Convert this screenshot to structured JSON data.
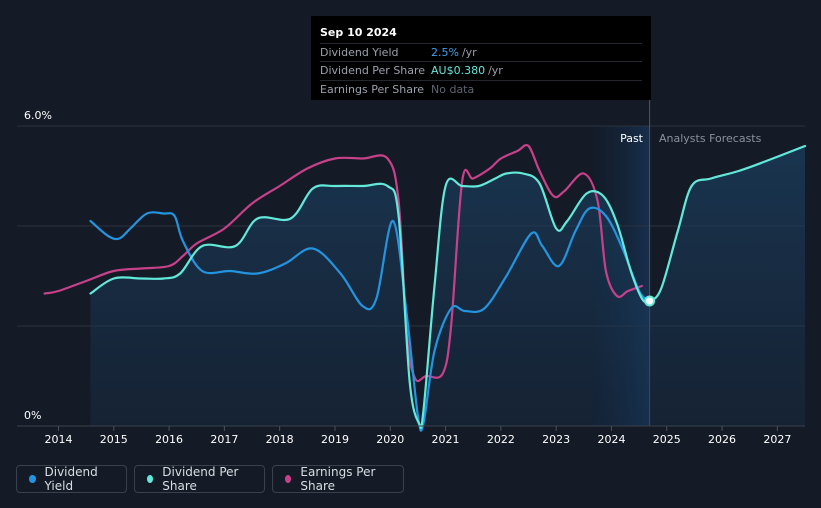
{
  "tooltip": {
    "date": "Sep 10 2024",
    "rows": [
      {
        "label": "Dividend Yield",
        "value": "2.5%",
        "unit": "/yr"
      },
      {
        "label": "Dividend Per Share",
        "value": "AU$0.380",
        "unit": "/yr"
      },
      {
        "label": "Earnings Per Share",
        "value": "No data"
      }
    ]
  },
  "legend": [
    {
      "label": "Dividend Yield",
      "color": "#2394df"
    },
    {
      "label": "Dividend Per Share",
      "color": "#62e9d9"
    },
    {
      "label": "Earnings Per Share",
      "color": "#c7418a"
    }
  ],
  "chart_data": {
    "type": "line",
    "title": "",
    "y_axis_labels": [
      "6.0%",
      "0%"
    ],
    "ylim": [
      0,
      6.0
    ],
    "xlim": [
      2013.25,
      2027.5
    ],
    "x_ticks": [
      "2014",
      "2015",
      "2016",
      "2017",
      "2018",
      "2019",
      "2020",
      "2021",
      "2022",
      "2023",
      "2024",
      "2025",
      "2026",
      "2027"
    ],
    "region_labels": {
      "past": "Past",
      "forecast": "Analysts Forecasts"
    },
    "current_marker": {
      "x": 2024.69,
      "y": 2.5
    },
    "series": [
      {
        "name": "Dividend Yield",
        "color": "#2394df",
        "x": [
          2014.58,
          2014.9,
          2015.1,
          2015.3,
          2015.6,
          2015.9,
          2016.1,
          2016.25,
          2016.6,
          2017.1,
          2017.6,
          2018.1,
          2018.6,
          2019.1,
          2019.5,
          2019.75,
          2020.05,
          2020.3,
          2020.5,
          2020.6,
          2020.8,
          2021.1,
          2021.35,
          2021.7,
          2022.1,
          2022.55,
          2022.75,
          2023.05,
          2023.35,
          2023.6,
          2023.9,
          2024.2,
          2024.5,
          2024.69
        ],
        "y": [
          4.1,
          3.8,
          3.75,
          3.95,
          4.25,
          4.25,
          4.2,
          3.7,
          3.1,
          3.1,
          3.05,
          3.25,
          3.55,
          3.05,
          2.4,
          2.55,
          4.1,
          2.2,
          0.2,
          0.05,
          1.5,
          2.35,
          2.3,
          2.35,
          3.0,
          3.85,
          3.6,
          3.2,
          3.9,
          4.35,
          4.2,
          3.55,
          2.7,
          2.5
        ],
        "segments": "past"
      },
      {
        "name": "Dividend Per Share",
        "color": "#62e9d9",
        "x": [
          2014.58,
          2015.0,
          2015.5,
          2015.9,
          2016.2,
          2016.6,
          2017.2,
          2017.6,
          2018.2,
          2018.6,
          2019.0,
          2019.5,
          2019.95,
          2020.15,
          2020.35,
          2020.52,
          2020.6,
          2020.8,
          2021.0,
          2021.3,
          2021.6,
          2021.9,
          2022.1,
          2022.4,
          2022.7,
          2023.0,
          2023.2,
          2023.55,
          2023.85,
          2024.1,
          2024.35,
          2024.55,
          2024.69,
          2024.9,
          2025.2,
          2025.45,
          2025.8,
          2026.3,
          2026.8,
          2027.5
        ],
        "y": [
          2.65,
          2.95,
          2.95,
          2.95,
          3.05,
          3.6,
          3.6,
          4.15,
          4.15,
          4.75,
          4.8,
          4.8,
          4.8,
          4.2,
          0.9,
          0.05,
          0.3,
          2.8,
          4.8,
          4.8,
          4.8,
          4.95,
          5.05,
          5.05,
          4.85,
          3.95,
          4.1,
          4.65,
          4.6,
          4.05,
          3.1,
          2.55,
          2.5,
          2.75,
          3.9,
          4.8,
          4.95,
          5.1,
          5.3,
          5.6
        ],
        "segments": "all"
      },
      {
        "name": "Earnings Per Share",
        "color": "#c7418a",
        "x": [
          2013.75,
          2014.0,
          2014.5,
          2015.0,
          2015.5,
          2016.0,
          2016.25,
          2016.5,
          2017.0,
          2017.5,
          2018.0,
          2018.5,
          2019.0,
          2019.5,
          2019.95,
          2020.15,
          2020.3,
          2020.45,
          2020.65,
          2020.95,
          2021.1,
          2021.3,
          2021.5,
          2021.8,
          2022.0,
          2022.3,
          2022.5,
          2022.7,
          2022.95,
          2023.15,
          2023.5,
          2023.75,
          2023.9,
          2024.1,
          2024.3,
          2024.55
        ],
        "y": [
          2.65,
          2.7,
          2.9,
          3.1,
          3.15,
          3.2,
          3.4,
          3.65,
          3.95,
          4.45,
          4.8,
          5.15,
          5.35,
          5.35,
          5.35,
          4.5,
          1.8,
          0.95,
          1.0,
          1.05,
          2.0,
          4.9,
          4.95,
          5.15,
          5.35,
          5.5,
          5.6,
          5.1,
          4.6,
          4.7,
          5.05,
          4.5,
          3.1,
          2.6,
          2.7,
          2.8
        ],
        "segments": "past"
      }
    ]
  }
}
